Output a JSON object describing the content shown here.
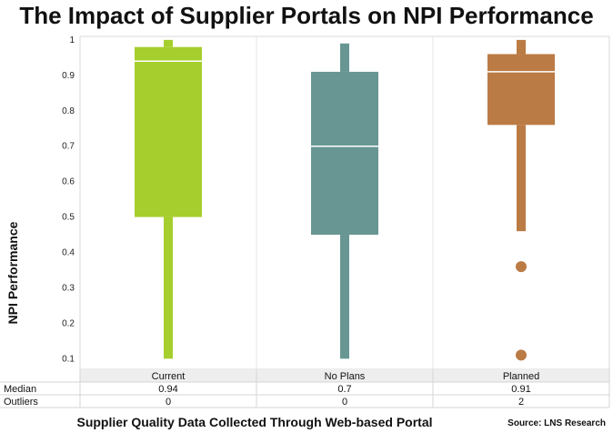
{
  "chart_data": {
    "type": "boxplot",
    "title": "The Impact of Supplier Portals on NPI Performance",
    "ylabel": "NPI Performance",
    "xlabel": "Supplier Quality Data Collected Through Web-based Portal",
    "source": "Source: LNS Research",
    "ylim": [
      0.07,
      1.01
    ],
    "yticks": [
      "0.1",
      "0.2",
      "0.3",
      "0.4",
      "0.5",
      "0.6",
      "0.7",
      "0.8",
      "0.9",
      "1"
    ],
    "categories": [
      "Current",
      "No Plans",
      "Planned"
    ],
    "colors": [
      "#a6ce2c",
      "#689693",
      "#bb7b45"
    ],
    "boxes": [
      {
        "min": 0.1,
        "q1": 0.5,
        "median": 0.94,
        "q3": 0.98,
        "max": 1.0,
        "outliers": []
      },
      {
        "min": 0.1,
        "q1": 0.45,
        "median": 0.7,
        "q3": 0.91,
        "max": 0.99,
        "outliers": []
      },
      {
        "min": 0.46,
        "q1": 0.76,
        "median": 0.91,
        "q3": 0.96,
        "max": 1.0,
        "outliers": [
          0.36,
          0.11
        ]
      }
    ],
    "table": {
      "rows": [
        {
          "label": "Median",
          "values": [
            "0.94",
            "0.7",
            "0.91"
          ]
        },
        {
          "label": "Outliers",
          "values": [
            "0",
            "0",
            "2"
          ]
        }
      ]
    }
  }
}
